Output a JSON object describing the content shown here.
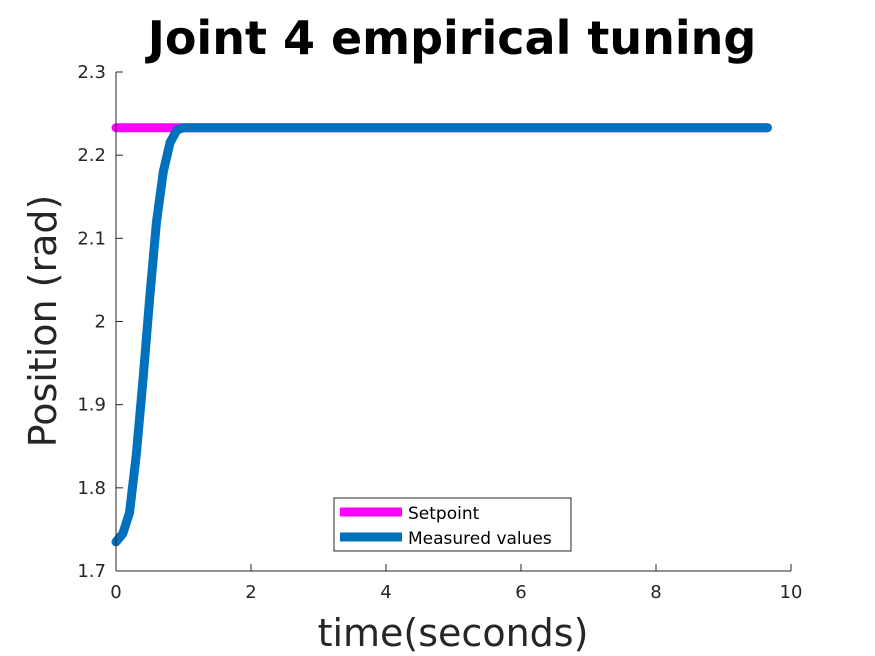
{
  "chart_data": {
    "type": "line",
    "title": "Joint 4 empirical tuning",
    "xlabel": "time(seconds)",
    "ylabel": "Position (rad)",
    "xlim": [
      0,
      10
    ],
    "ylim": [
      1.7,
      2.3
    ],
    "xticks": [
      "0",
      "2",
      "4",
      "6",
      "8",
      "10"
    ],
    "yticks": [
      "1.7",
      "1.8",
      "1.9",
      "2",
      "2.1",
      "2.2",
      "2.3"
    ],
    "grid": false,
    "legend_position": "bottom-center",
    "series": [
      {
        "name": "Setpoint",
        "color": "#FF00FF",
        "x": [
          0,
          9.65
        ],
        "y": [
          2.233,
          2.233
        ]
      },
      {
        "name": "Measured values",
        "color": "#0072BD",
        "x": [
          0,
          0.1,
          0.2,
          0.3,
          0.4,
          0.5,
          0.6,
          0.7,
          0.8,
          0.9,
          1.0,
          1.2,
          1.5,
          2.0,
          4.0,
          6.0,
          8.0,
          9.65
        ],
        "y": [
          1.735,
          1.745,
          1.77,
          1.84,
          1.93,
          2.03,
          2.12,
          2.18,
          2.215,
          2.23,
          2.233,
          2.233,
          2.233,
          2.233,
          2.233,
          2.233,
          2.233,
          2.233
        ]
      }
    ]
  }
}
